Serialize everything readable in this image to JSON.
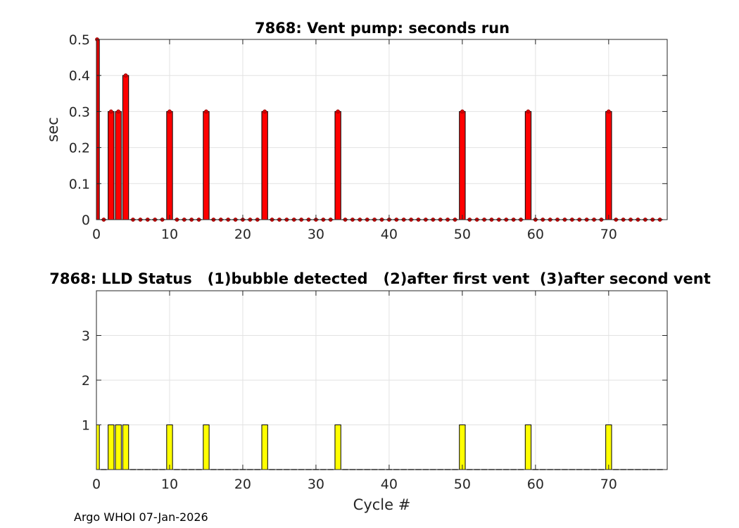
{
  "footer": "Argo WHOI 07-Jan-2026",
  "chart_data": [
    {
      "type": "bar",
      "title": "7868: Vent pump: seconds run",
      "xlabel": "",
      "ylabel": "sec",
      "xlim": [
        0,
        78
      ],
      "ylim": [
        0,
        0.5
      ],
      "xticks": [
        0,
        10,
        20,
        30,
        40,
        50,
        60,
        70
      ],
      "xtick_labels": [
        "0",
        "10",
        "20",
        "30",
        "40",
        "50",
        "60",
        "70"
      ],
      "yticks": [
        0,
        0.1,
        0.2,
        0.3,
        0.4,
        0.5
      ],
      "ytick_labels": [
        "0",
        "0.1",
        "0.2",
        "0.3",
        "0.4",
        "0.5"
      ],
      "grid": true,
      "bar_color": "#ff0000",
      "marker_color": "#d40000",
      "x": [
        0,
        1,
        2,
        3,
        4,
        5,
        6,
        7,
        8,
        9,
        10,
        11,
        12,
        13,
        14,
        15,
        16,
        17,
        18,
        19,
        20,
        21,
        22,
        23,
        24,
        25,
        26,
        27,
        28,
        29,
        30,
        31,
        32,
        33,
        34,
        35,
        36,
        37,
        38,
        39,
        40,
        41,
        42,
        43,
        44,
        45,
        46,
        47,
        48,
        49,
        50,
        51,
        52,
        53,
        54,
        55,
        56,
        57,
        58,
        59,
        60,
        61,
        62,
        63,
        64,
        65,
        66,
        67,
        68,
        69,
        70,
        71,
        72,
        73,
        74,
        75,
        76,
        77
      ],
      "values": [
        0.5,
        0,
        0.3,
        0.3,
        0.4,
        0,
        0,
        0,
        0,
        0,
        0.3,
        0,
        0,
        0,
        0,
        0.3,
        0,
        0,
        0,
        0,
        0,
        0,
        0,
        0.3,
        0,
        0,
        0,
        0,
        0,
        0,
        0,
        0,
        0,
        0.3,
        0,
        0,
        0,
        0,
        0,
        0,
        0,
        0,
        0,
        0,
        0,
        0,
        0,
        0,
        0,
        0,
        0.3,
        0,
        0,
        0,
        0,
        0,
        0,
        0,
        0,
        0.3,
        0,
        0,
        0,
        0,
        0,
        0,
        0,
        0,
        0,
        0,
        0.3,
        0,
        0,
        0,
        0,
        0,
        0,
        0
      ]
    },
    {
      "type": "bar",
      "title": "7868: LLD Status   (1)bubble detected   (2)after first vent  (3)after second vent",
      "xlabel": "Cycle #",
      "ylabel": "",
      "xlim": [
        0,
        78
      ],
      "ylim": [
        0,
        4
      ],
      "xticks": [
        0,
        10,
        20,
        30,
        40,
        50,
        60,
        70
      ],
      "xtick_labels": [
        "0",
        "10",
        "20",
        "30",
        "40",
        "50",
        "60",
        "70"
      ],
      "yticks": [
        1,
        2,
        3
      ],
      "ytick_labels": [
        "1",
        "2",
        "3"
      ],
      "grid": true,
      "bar_color": "#ffff00",
      "x": [
        0,
        1,
        2,
        3,
        4,
        5,
        6,
        7,
        8,
        9,
        10,
        11,
        12,
        13,
        14,
        15,
        16,
        17,
        18,
        19,
        20,
        21,
        22,
        23,
        24,
        25,
        26,
        27,
        28,
        29,
        30,
        31,
        32,
        33,
        34,
        35,
        36,
        37,
        38,
        39,
        40,
        41,
        42,
        43,
        44,
        45,
        46,
        47,
        48,
        49,
        50,
        51,
        52,
        53,
        54,
        55,
        56,
        57,
        58,
        59,
        60,
        61,
        62,
        63,
        64,
        65,
        66,
        67,
        68,
        69,
        70,
        71,
        72,
        73,
        74,
        75,
        76,
        77
      ],
      "values": [
        1,
        0,
        1,
        1,
        1,
        0,
        0,
        0,
        0,
        0,
        1,
        0,
        0,
        0,
        0,
        1,
        0,
        0,
        0,
        0,
        0,
        0,
        0,
        1,
        0,
        0,
        0,
        0,
        0,
        0,
        0,
        0,
        0,
        1,
        0,
        0,
        0,
        0,
        0,
        0,
        0,
        0,
        0,
        0,
        0,
        0,
        0,
        0,
        0,
        0,
        1,
        0,
        0,
        0,
        0,
        0,
        0,
        0,
        0,
        1,
        0,
        0,
        0,
        0,
        0,
        0,
        0,
        0,
        0,
        0,
        1,
        0,
        0,
        0,
        0,
        0,
        0,
        0
      ]
    }
  ]
}
